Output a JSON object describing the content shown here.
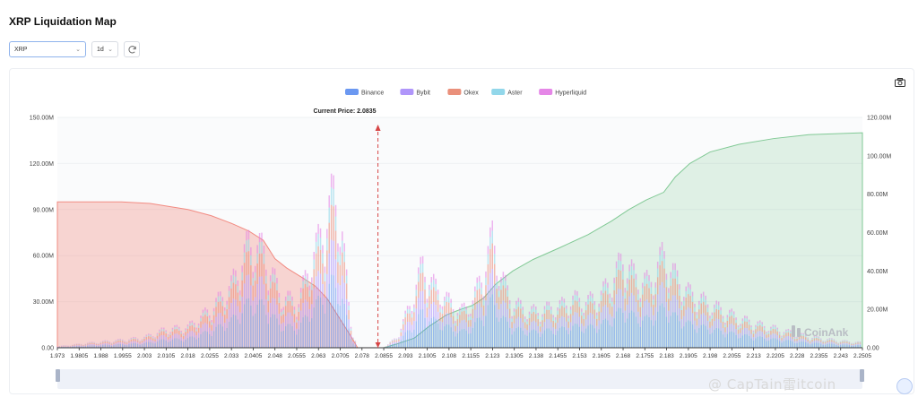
{
  "page": {
    "title": "XRP Liquidation Map"
  },
  "controls": {
    "coin": "XRP",
    "timeframe": "1d"
  },
  "colors": {
    "binance": "#5b8def",
    "bybit": "#a78bfa",
    "okex": "#e8846d",
    "aster": "#86d3e8",
    "hyperliquid": "#e27ae4",
    "short_cum": "#f28b82",
    "long_cum": "#81c995",
    "current": "#d64545"
  },
  "watermark": {
    "logo_text": "CoinAnk",
    "credit_text": "@ CapTain雷itcoin"
  },
  "chart_data": {
    "type": "bar",
    "title": "",
    "current_price_label": "Current Price:",
    "current_price": 2.0835,
    "legend": [
      "Binance",
      "Bybit",
      "Okex",
      "Aster",
      "Hyperliquid"
    ],
    "legend_position": "top-center",
    "x_ticks": [
      "1.973",
      "1.9805",
      "1.988",
      "1.9955",
      "2.003",
      "2.0105",
      "2.018",
      "2.0255",
      "2.033",
      "2.0405",
      "2.048",
      "2.0555",
      "2.063",
      "2.0705",
      "2.078",
      "2.0855",
      "2.093",
      "2.1005",
      "2.108",
      "2.1155",
      "2.123",
      "2.1305",
      "2.138",
      "2.1455",
      "2.153",
      "2.1605",
      "2.168",
      "2.1755",
      "2.183",
      "2.1905",
      "2.198",
      "2.2055",
      "2.213",
      "2.2205",
      "2.228",
      "2.2355",
      "2.243",
      "2.2505"
    ],
    "xlim": [
      1.973,
      2.2505
    ],
    "y_left": {
      "ticks": [
        "0.00",
        "30.00M",
        "60.00M",
        "90.00M",
        "120.00M",
        "150.00M"
      ],
      "lim": [
        0,
        150
      ]
    },
    "y_right": {
      "ticks": [
        "0.00",
        "20.00M",
        "40.00M",
        "60.00M",
        "80.00M",
        "100.00M",
        "120.00M"
      ],
      "lim": [
        0,
        120
      ]
    },
    "bar_profile_left": [
      [
        1.973,
        1
      ],
      [
        1.985,
        4
      ],
      [
        1.995,
        6
      ],
      [
        2.003,
        8
      ],
      [
        2.01,
        14
      ],
      [
        2.018,
        16
      ],
      [
        2.026,
        30
      ],
      [
        2.033,
        48
      ],
      [
        2.039,
        80
      ],
      [
        2.044,
        75
      ],
      [
        2.05,
        40
      ],
      [
        2.056,
        35
      ],
      [
        2.061,
        70
      ],
      [
        2.065,
        92
      ],
      [
        2.068,
        118
      ],
      [
        2.071,
        95
      ],
      [
        2.074,
        20
      ],
      [
        2.0765,
        0
      ]
    ],
    "bar_profile_right": [
      [
        2.0855,
        0
      ],
      [
        2.09,
        8
      ],
      [
        2.095,
        35
      ],
      [
        2.099,
        65
      ],
      [
        2.102,
        50
      ],
      [
        2.107,
        38
      ],
      [
        2.112,
        28
      ],
      [
        2.116,
        35
      ],
      [
        2.12,
        60
      ],
      [
        2.123,
        85
      ],
      [
        2.126,
        55
      ],
      [
        2.13,
        35
      ],
      [
        2.136,
        28
      ],
      [
        2.141,
        30
      ],
      [
        2.146,
        32
      ],
      [
        2.151,
        38
      ],
      [
        2.156,
        36
      ],
      [
        2.16,
        40
      ],
      [
        2.164,
        52
      ],
      [
        2.168,
        68
      ],
      [
        2.172,
        55
      ],
      [
        2.177,
        50
      ],
      [
        2.182,
        72
      ],
      [
        2.186,
        55
      ],
      [
        2.191,
        42
      ],
      [
        2.197,
        35
      ],
      [
        2.203,
        28
      ],
      [
        2.209,
        22
      ],
      [
        2.215,
        18
      ],
      [
        2.222,
        14
      ],
      [
        2.229,
        10
      ],
      [
        2.237,
        7
      ],
      [
        2.245,
        5
      ],
      [
        2.2505,
        4
      ]
    ],
    "series": [
      {
        "name": "short_cumulative_left",
        "points": [
          [
            1.973,
            95
          ],
          [
            1.995,
            95
          ],
          [
            2.005,
            94
          ],
          [
            2.018,
            90
          ],
          [
            2.026,
            86
          ],
          [
            2.033,
            81
          ],
          [
            2.039,
            76
          ],
          [
            2.044,
            70
          ],
          [
            2.048,
            58
          ],
          [
            2.052,
            52
          ],
          [
            2.058,
            45
          ],
          [
            2.062,
            40
          ],
          [
            2.066,
            32
          ],
          [
            2.07,
            20
          ],
          [
            2.074,
            8
          ],
          [
            2.0765,
            0
          ]
        ]
      },
      {
        "name": "long_cumulative_right",
        "points": [
          [
            2.0855,
            0
          ],
          [
            2.09,
            2
          ],
          [
            2.096,
            5
          ],
          [
            2.101,
            11
          ],
          [
            2.107,
            17
          ],
          [
            2.112,
            20
          ],
          [
            2.116,
            22
          ],
          [
            2.12,
            26
          ],
          [
            2.124,
            33
          ],
          [
            2.13,
            40
          ],
          [
            2.137,
            46
          ],
          [
            2.146,
            52
          ],
          [
            2.156,
            59
          ],
          [
            2.164,
            66
          ],
          [
            2.17,
            72
          ],
          [
            2.176,
            77
          ],
          [
            2.182,
            81
          ],
          [
            2.186,
            89
          ],
          [
            2.191,
            96
          ],
          [
            2.198,
            102
          ],
          [
            2.208,
            106
          ],
          [
            2.22,
            109
          ],
          [
            2.232,
            111
          ],
          [
            2.2505,
            112
          ]
        ]
      }
    ]
  }
}
